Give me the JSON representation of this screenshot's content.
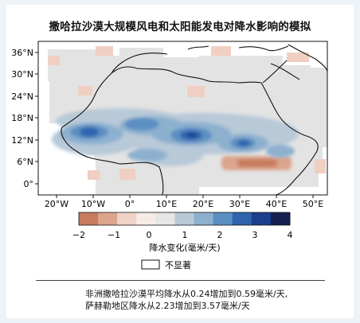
{
  "title": "撒哈拉沙漠大规模风电和太阳能发电对降水影响的模拟",
  "map": {
    "lat_ticks": [
      "36°N",
      "30°N",
      "24°N",
      "18°N",
      "12°N",
      "6°N",
      "0°"
    ],
    "lon_ticks": [
      "20°W",
      "10°W",
      "0°",
      "10°E",
      "20°E",
      "30°E",
      "40°E",
      "50°E"
    ]
  },
  "colorbar": {
    "ticks": [
      "−2",
      "−1",
      "0",
      "1",
      "2",
      "3",
      "4"
    ],
    "label": "降水变化(毫米/天)",
    "colors": [
      "#c97b5e",
      "#dca48c",
      "#efd3c6",
      "#f7ebe5",
      "#e6e6e6",
      "#b8c9d8",
      "#8db0cf",
      "#5b8fc2",
      "#2f63ad",
      "#1b3f8c",
      "#14204f"
    ]
  },
  "legend": {
    "not_significant_label": "不显著"
  },
  "note": {
    "line1": "非洲撒哈拉沙漠平均降水从0.24增加到0.59毫米/天,",
    "line2": "萨赫勒地区降水从2.23增加到3.57毫米/天"
  }
}
